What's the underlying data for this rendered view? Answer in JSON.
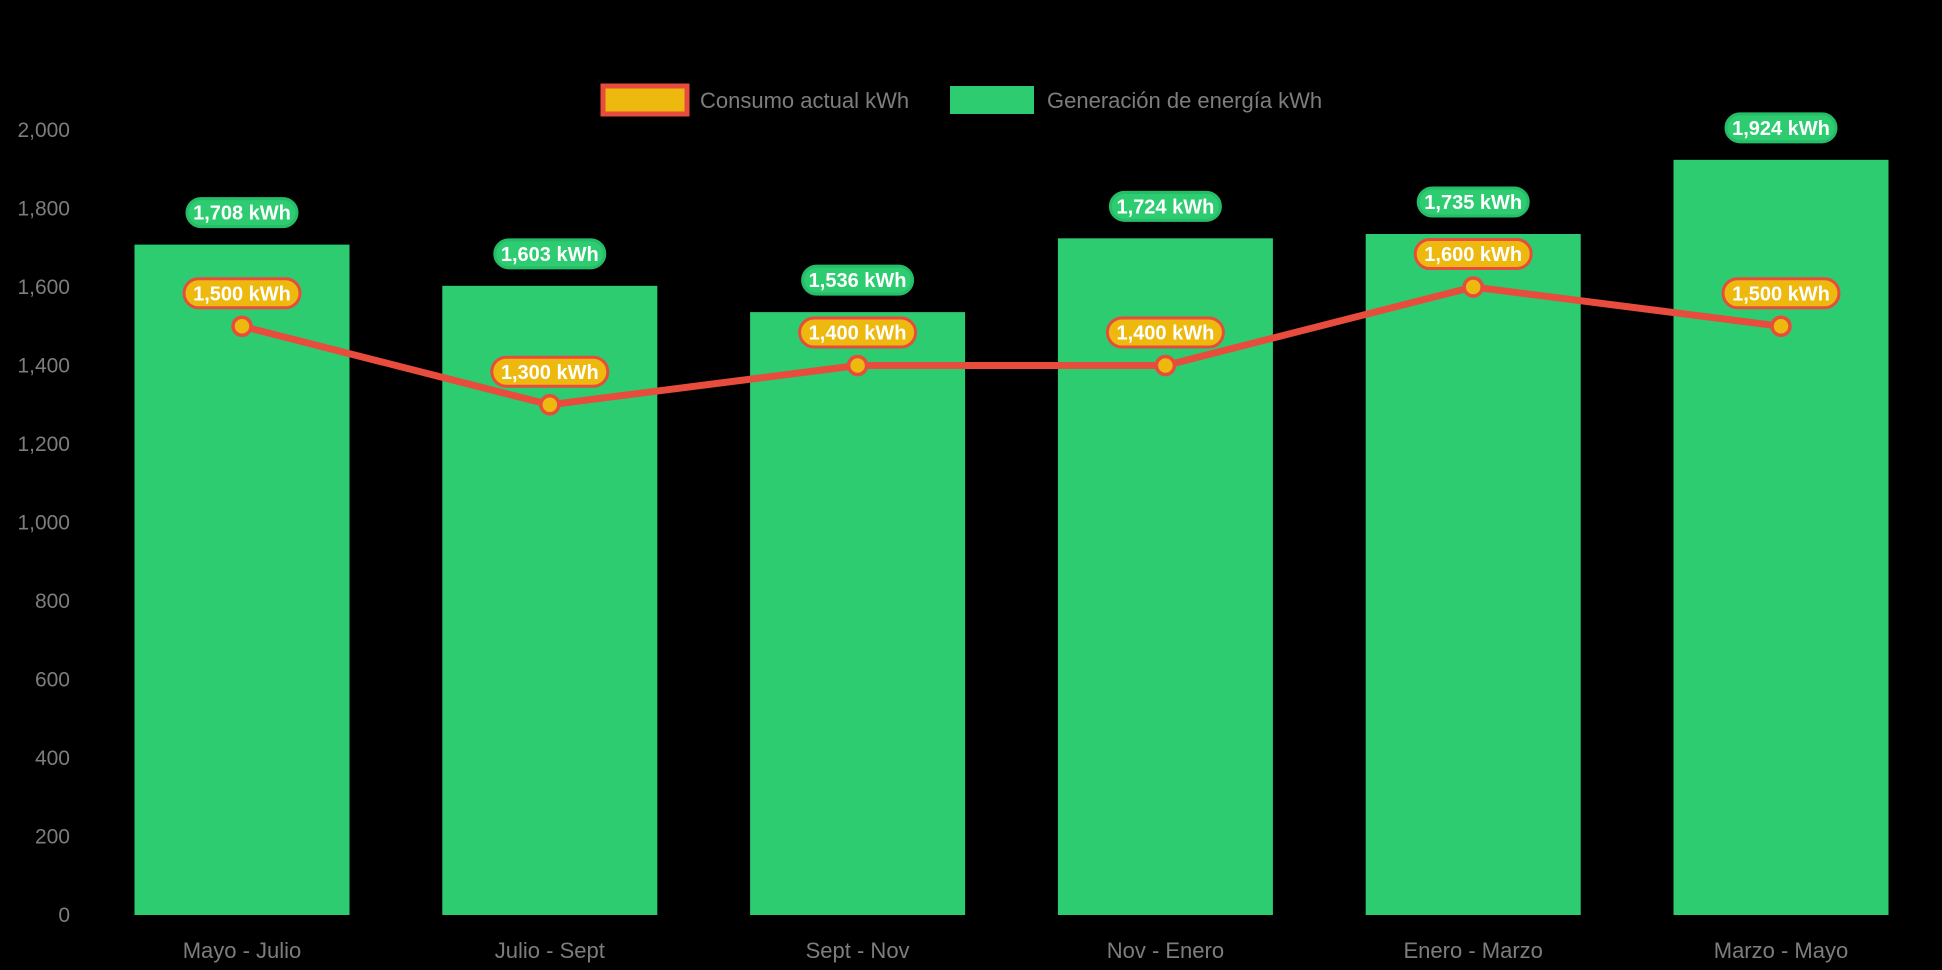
{
  "chart_data": {
    "type": "bar+line",
    "categories": [
      "Mayo - Julio",
      "Julio - Sept",
      "Sept - Nov",
      "Nov - Enero",
      "Enero - Marzo",
      "Marzo - Mayo"
    ],
    "series": [
      {
        "name": "Consumo actual kWh",
        "type": "line",
        "color": "#e74c3c",
        "point_fill": "#edb90f",
        "values": [
          1500,
          1300,
          1400,
          1400,
          1600,
          1500
        ],
        "labels": [
          "1,500 kWh",
          "1,300 kWh",
          "1,400 kWh",
          "1,400 kWh",
          "1,600 kWh",
          "1,500 kWh"
        ]
      },
      {
        "name": "Generación de energía kWh",
        "type": "bar",
        "color": "#2ecc71",
        "values": [
          1708,
          1603,
          1536,
          1724,
          1735,
          1924
        ],
        "labels": [
          "1,708 kWh",
          "1,603 kWh",
          "1,536 kWh",
          "1,724 kWh",
          "1,735 kWh",
          "1,924 kWh"
        ]
      }
    ],
    "y_axis": {
      "min": 0,
      "max": 2000,
      "step": 200,
      "tick_labels": [
        "0",
        "200",
        "400",
        "600",
        "800",
        "1,000",
        "1,200",
        "1,400",
        "1,600",
        "1,800",
        "2,000"
      ]
    },
    "grid": false,
    "legend_position": "top"
  },
  "legend": {
    "items": [
      {
        "label": "Consumo actual kWh",
        "swatch": "gold-with-red-border"
      },
      {
        "label": "Generación de energía kWh",
        "swatch": "green"
      }
    ]
  },
  "colors": {
    "bar_green": "#2ecc71",
    "green_pill_border": "#26bd68",
    "gold": "#edb90f",
    "red": "#e74c3c",
    "axis_text": "#7d7d7d",
    "pill_text": "#ffffff",
    "background": "#000000"
  }
}
